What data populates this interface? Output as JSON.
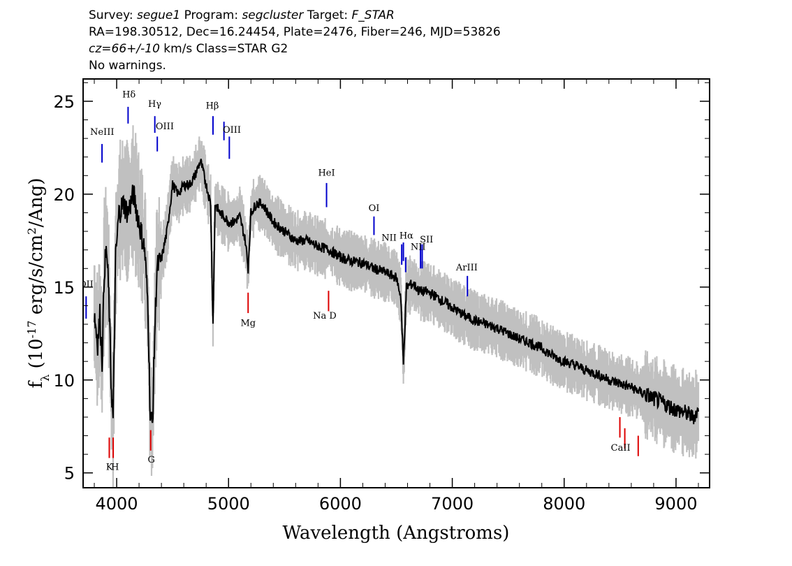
{
  "header": {
    "line1": [
      {
        "text": "Survey: ",
        "italic": false
      },
      {
        "text": "segue1",
        "italic": true
      },
      {
        "text": " Program: ",
        "italic": false
      },
      {
        "text": "segcluster",
        "italic": true
      },
      {
        "text": " Target: ",
        "italic": false
      },
      {
        "text": "F_STAR",
        "italic": true
      }
    ],
    "line2": "RA=198.30512, Dec=16.24454, Plate=2476, Fiber=246, MJD=53826",
    "line3": [
      {
        "text": "cz=66+/-10",
        "italic": true
      },
      {
        "text": " km/s Class=STAR G2",
        "italic": false
      }
    ],
    "line4": "No warnings."
  },
  "colors": {
    "flux": "#000000",
    "error_band": "#c0c0c0",
    "emission": "#0000cc",
    "absorption": "#dd0000"
  },
  "chart_data": {
    "type": "line",
    "xlabel": "Wavelength (Angstroms)",
    "ylabel": "f_λ (10^-17 erg/s/cm^2/Ang)",
    "xlim": [
      3700,
      9300
    ],
    "ylim": [
      4.2,
      26.2
    ],
    "xticks": [
      4000,
      5000,
      6000,
      7000,
      8000,
      9000
    ],
    "yticks": [
      5,
      10,
      15,
      20,
      25
    ],
    "grid": false,
    "series": [
      {
        "x": [
          3800,
          3830,
          3850,
          3870,
          3890,
          3910,
          3930,
          3950,
          3968,
          3990,
          4020,
          4060,
          4100,
          4150,
          4200,
          4250,
          4280,
          4300,
          4320,
          4340,
          4360,
          4400,
          4450,
          4500,
          4550,
          4600,
          4650,
          4700,
          4750,
          4800,
          4840,
          4861,
          4880,
          4920,
          4960,
          5000,
          5050,
          5100,
          5150,
          5175,
          5200,
          5250,
          5300,
          5400,
          5500,
          5600,
          5700,
          5800,
          5900,
          6000,
          6100,
          6200,
          6300,
          6400,
          6500,
          6540,
          6563,
          6590,
          6650,
          6700,
          6800,
          6900,
          7000,
          7100,
          7200,
          7300,
          7400,
          7500,
          7600,
          7700,
          7800,
          7900,
          8000,
          8100,
          8200,
          8300,
          8400,
          8500,
          8600,
          8700,
          8800,
          8900,
          9000,
          9100,
          9150,
          9200
        ],
        "y": [
          13.6,
          12.0,
          13.5,
          11.0,
          16.0,
          17.0,
          14.5,
          10.0,
          7.8,
          16.5,
          19.0,
          19.5,
          19.0,
          20.0,
          18.5,
          17.0,
          14.0,
          8.0,
          7.6,
          12.5,
          16.0,
          16.5,
          18.0,
          20.5,
          20.0,
          20.5,
          20.5,
          21.0,
          21.8,
          20.5,
          19.5,
          13.0,
          19.5,
          19.0,
          18.8,
          18.5,
          18.5,
          18.8,
          17.5,
          16.0,
          19.0,
          19.5,
          19.5,
          18.5,
          18.0,
          17.5,
          17.5,
          17.2,
          17.0,
          16.6,
          16.4,
          16.3,
          16.0,
          15.8,
          15.5,
          14.5,
          10.8,
          15.0,
          15.2,
          14.8,
          14.7,
          14.3,
          13.9,
          13.5,
          13.2,
          13.0,
          12.8,
          12.5,
          12.2,
          12.0,
          11.7,
          11.3,
          11.0,
          10.8,
          10.5,
          10.3,
          10.0,
          9.8,
          9.6,
          9.3,
          9.0,
          8.7,
          8.4,
          8.2,
          8.0,
          8.3
        ]
      }
    ],
    "emission_lines": [
      {
        "name": "OII",
        "x": 3727,
        "y1": 14.5,
        "y2": 13.3
      },
      {
        "name": "NeIII",
        "x": 3869,
        "y1": 22.7,
        "y2": 21.7
      },
      {
        "name": "Hδ",
        "x": 4102,
        "y1": 24.7,
        "y2": 23.8
      },
      {
        "name": "Hγ",
        "x": 4341,
        "y1": 24.2,
        "y2": 23.3
      },
      {
        "name": "OIII",
        "x": 4363,
        "y1": 23.1,
        "y2": 22.3
      },
      {
        "name": "Hβ",
        "x": 4861,
        "y1": 24.2,
        "y2": 23.2
      },
      {
        "name": "OIII",
        "x": 4959,
        "y1": 23.9,
        "y2": 22.9
      },
      {
        "name": "OIII",
        "x": 5007,
        "y1": 23.1,
        "y2": 21.9
      },
      {
        "name": "HeI",
        "x": 5876,
        "y1": 20.6,
        "y2": 19.3
      },
      {
        "name": "OI",
        "x": 6300,
        "y1": 18.8,
        "y2": 17.8
      },
      {
        "name": "NII",
        "x": 6548,
        "y1": 17.3,
        "y2": 16.2
      },
      {
        "name": "Hα",
        "x": 6563,
        "y1": 17.4,
        "y2": 16.4
      },
      {
        "name": "NII",
        "x": 6583,
        "y1": 16.6,
        "y2": 15.8
      },
      {
        "name": "SII",
        "x": 6716,
        "y1": 17.3,
        "y2": 16.0
      },
      {
        "name": "SII",
        "x": 6731,
        "y1": 17.3,
        "y2": 16.0
      },
      {
        "name": "ArIII",
        "x": 7135,
        "y1": 15.6,
        "y2": 14.5
      }
    ],
    "absorption_lines": [
      {
        "name": "K",
        "x": 3934,
        "y1": 6.9,
        "y2": 5.8
      },
      {
        "name": "H",
        "x": 3969,
        "y1": 6.9,
        "y2": 5.8
      },
      {
        "name": "G",
        "x": 4304,
        "y1": 7.3,
        "y2": 6.2
      },
      {
        "name": "Mg",
        "x": 5175,
        "y1": 14.7,
        "y2": 13.6
      },
      {
        "name": "Na",
        "x": 5894,
        "y1": 14.8,
        "y2": 13.7
      },
      {
        "name": "CaII",
        "x": 8498,
        "y1": 8.0,
        "y2": 6.9
      },
      {
        "name": "CaII",
        "x": 8542,
        "y1": 7.4,
        "y2": 6.3
      },
      {
        "name": "CaII",
        "x": 8662,
        "y1": 7.0,
        "y2": 5.9
      }
    ],
    "line_labels": [
      {
        "text": "OII",
        "x": 3727,
        "y": 15.0,
        "color": "blue",
        "cut": true
      },
      {
        "text": "NeIII",
        "x": 3870,
        "y": 23.2,
        "color": "blue"
      },
      {
        "text": "Hδ",
        "x": 4110,
        "y": 25.2,
        "color": "blue"
      },
      {
        "text": "Hγ",
        "x": 4340,
        "y": 24.7,
        "color": "blue"
      },
      {
        "text": "OIII",
        "x": 4430,
        "y": 23.5,
        "color": "blue"
      },
      {
        "text": "Hβ",
        "x": 4855,
        "y": 24.6,
        "color": "blue"
      },
      {
        "text": "OIII",
        "x": 5030,
        "y": 23.3,
        "color": "blue"
      },
      {
        "text": "HeI",
        "x": 5876,
        "y": 21.0,
        "color": "blue"
      },
      {
        "text": "OI",
        "x": 6300,
        "y": 19.1,
        "color": "blue"
      },
      {
        "text": "NII",
        "x": 6435,
        "y": 17.5,
        "color": "blue"
      },
      {
        "text": "Hα",
        "x": 6590,
        "y": 17.6,
        "color": "blue"
      },
      {
        "text": "NII",
        "x": 6695,
        "y": 17.0,
        "color": "blue"
      },
      {
        "text": "SII",
        "x": 6770,
        "y": 17.4,
        "color": "blue"
      },
      {
        "text": "ArIII",
        "x": 7130,
        "y": 15.9,
        "color": "blue"
      },
      {
        "text": "K",
        "x": 3935,
        "y": 5.15,
        "color": "red"
      },
      {
        "text": "H",
        "x": 3985,
        "y": 5.15,
        "color": "red"
      },
      {
        "text": "G",
        "x": 4310,
        "y": 5.55,
        "color": "red"
      },
      {
        "text": "Mg",
        "x": 5175,
        "y": 12.9,
        "color": "red"
      },
      {
        "text": "Na D",
        "x": 5860,
        "y": 13.3,
        "color": "red"
      },
      {
        "text": "CaII",
        "x": 8505,
        "y": 6.2,
        "color": "red"
      }
    ]
  }
}
